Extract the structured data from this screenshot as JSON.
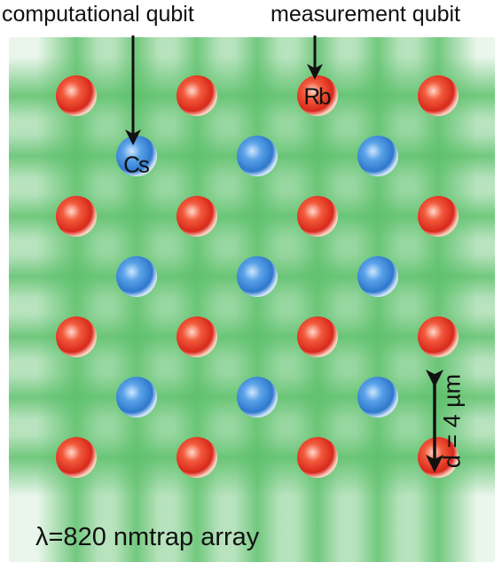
{
  "labels": {
    "computational": "computational qubit",
    "measurement": "measurement qubit",
    "cs": "Cs",
    "rb": "Rb",
    "spacing": "d = 4 µm",
    "trap": "λ=820 nmtrap array"
  },
  "colors": {
    "trap_green": "#5cc06a",
    "rb_red": "#e0321e",
    "cs_blue": "#3a86d4",
    "arrow": "#111111"
  },
  "lattice": {
    "rb_rows": 4,
    "rb_cols": 4,
    "cs_rows": 3,
    "cs_cols": 3,
    "labeled_rb": {
      "row": 0,
      "col": 2
    },
    "labeled_cs": {
      "row": 0,
      "col": 0
    }
  }
}
